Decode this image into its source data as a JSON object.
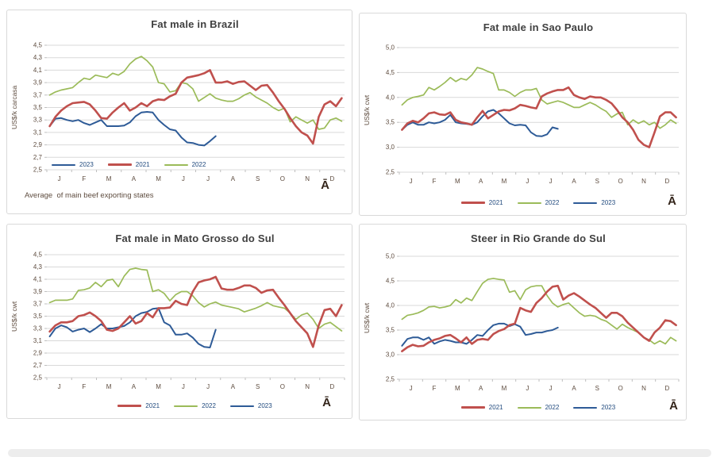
{
  "months": [
    "J",
    "F",
    "M",
    "A",
    "M",
    "J",
    "J",
    "A",
    "S",
    "O",
    "N",
    "D"
  ],
  "colors": {
    "red_2021": "#C0504D",
    "green_2022": "#9BBB59",
    "blue_2023": "#2E5B97",
    "gridline": "#D9D9D9",
    "axis_tick": "#BFBFBF",
    "tick_text": "#5E4C3F",
    "title_text": "#404040",
    "legend_text": "#1F497D",
    "panel_border": "#D9D9D9",
    "bottom_strip": "#EDEDED"
  },
  "chart_data": [
    {
      "type": "line",
      "title": "Fat male in Brazil",
      "ylabel": "US$/k carcasa",
      "ylim": [
        2.5,
        4.5
      ],
      "ystep": 0.2,
      "n_categories": 52,
      "x_tick_labels": [
        "J",
        "F",
        "M",
        "A",
        "M",
        "J",
        "J",
        "A",
        "S",
        "O",
        "N",
        "D"
      ],
      "legend_position": "inside-bottom-left",
      "legend_order": [
        "2023",
        "2021",
        "2022"
      ],
      "footnote": "Average  of main beef exporting states",
      "corner_glyph": "Ā",
      "series": [
        {
          "name": "2023",
          "color": "#2E5B97",
          "stroke_width": 2,
          "values": [
            3.2,
            3.32,
            3.33,
            3.3,
            3.28,
            3.3,
            3.25,
            3.22,
            3.26,
            3.3,
            3.2,
            3.2,
            3.2,
            3.21,
            3.26,
            3.36,
            3.42,
            3.43,
            3.42,
            3.3,
            3.22,
            3.15,
            3.13,
            3.02,
            2.94,
            2.93,
            2.9,
            2.89,
            2.96,
            3.04
          ]
        },
        {
          "name": "2021",
          "color": "#C0504D",
          "stroke_width": 2.6,
          "values": [
            3.2,
            3.35,
            3.45,
            3.52,
            3.57,
            3.58,
            3.59,
            3.55,
            3.45,
            3.33,
            3.32,
            3.42,
            3.5,
            3.57,
            3.45,
            3.5,
            3.57,
            3.52,
            3.6,
            3.63,
            3.62,
            3.68,
            3.72,
            3.9,
            3.98,
            4.0,
            4.02,
            4.05,
            4.1,
            3.9,
            3.9,
            3.92,
            3.88,
            3.91,
            3.92,
            3.85,
            3.78,
            3.85,
            3.86,
            3.74,
            3.6,
            3.48,
            3.33,
            3.2,
            3.1,
            3.05,
            2.92,
            3.35,
            3.55,
            3.6,
            3.52,
            3.65
          ]
        },
        {
          "name": "2022",
          "color": "#9BBB59",
          "stroke_width": 1.7,
          "values": [
            3.7,
            3.75,
            3.78,
            3.8,
            3.82,
            3.9,
            3.97,
            3.95,
            4.02,
            4.0,
            3.98,
            4.05,
            4.02,
            4.08,
            4.2,
            4.28,
            4.32,
            4.25,
            4.15,
            3.9,
            3.88,
            3.75,
            3.77,
            3.9,
            3.88,
            3.8,
            3.6,
            3.66,
            3.72,
            3.65,
            3.62,
            3.6,
            3.6,
            3.64,
            3.7,
            3.74,
            3.67,
            3.62,
            3.57,
            3.5,
            3.45,
            3.49,
            3.27,
            3.35,
            3.3,
            3.25,
            3.3,
            3.15,
            3.17,
            3.3,
            3.33,
            3.28
          ]
        }
      ]
    },
    {
      "type": "line",
      "title": "Fat male in Sao Paulo",
      "ylabel": "US$/k cwt",
      "ylim": [
        2.5,
        5.0
      ],
      "ystep": 0.5,
      "n_categories": 52,
      "x_tick_labels": [
        "J",
        "F",
        "M",
        "A",
        "M",
        "J",
        "J",
        "A",
        "S",
        "O",
        "N",
        "D"
      ],
      "legend_position": "below",
      "legend_order": [
        "2021",
        "2022",
        "2023"
      ],
      "footnote": "",
      "corner_glyph": "Ā",
      "series": [
        {
          "name": "2021",
          "color": "#C0504D",
          "stroke_width": 2.6,
          "values": [
            3.35,
            3.48,
            3.53,
            3.5,
            3.58,
            3.68,
            3.7,
            3.66,
            3.65,
            3.7,
            3.55,
            3.5,
            3.48,
            3.45,
            3.6,
            3.73,
            3.58,
            3.65,
            3.72,
            3.75,
            3.74,
            3.78,
            3.85,
            3.83,
            3.8,
            3.78,
            4.02,
            4.08,
            4.12,
            4.15,
            4.15,
            4.2,
            4.05,
            4.0,
            3.97,
            4.02,
            4.0,
            4.0,
            3.95,
            3.88,
            3.75,
            3.6,
            3.5,
            3.35,
            3.15,
            3.05,
            3.0,
            3.3,
            3.62,
            3.7,
            3.7,
            3.6
          ]
        },
        {
          "name": "2022",
          "color": "#9BBB59",
          "stroke_width": 1.7,
          "values": [
            3.85,
            3.95,
            4.0,
            4.02,
            4.05,
            4.2,
            4.15,
            4.22,
            4.3,
            4.4,
            4.32,
            4.38,
            4.35,
            4.45,
            4.6,
            4.57,
            4.52,
            4.48,
            4.15,
            4.15,
            4.1,
            4.02,
            4.1,
            4.15,
            4.15,
            4.18,
            3.95,
            3.87,
            3.9,
            3.93,
            3.9,
            3.85,
            3.8,
            3.8,
            3.85,
            3.9,
            3.85,
            3.78,
            3.72,
            3.6,
            3.67,
            3.7,
            3.45,
            3.55,
            3.48,
            3.53,
            3.45,
            3.5,
            3.38,
            3.45,
            3.55,
            3.48
          ]
        },
        {
          "name": "2023",
          "color": "#2E5B97",
          "stroke_width": 2,
          "values": [
            3.35,
            3.45,
            3.5,
            3.45,
            3.45,
            3.5,
            3.48,
            3.5,
            3.55,
            3.65,
            3.5,
            3.48,
            3.47,
            3.45,
            3.5,
            3.62,
            3.72,
            3.75,
            3.68,
            3.58,
            3.48,
            3.44,
            3.45,
            3.44,
            3.3,
            3.23,
            3.22,
            3.26,
            3.4,
            3.37
          ]
        }
      ]
    },
    {
      "type": "line",
      "title": "Fat male in Mato Grosso do Sul",
      "ylabel": "US$/k cwt",
      "ylim": [
        2.5,
        4.5
      ],
      "ystep": 0.2,
      "n_categories": 52,
      "x_tick_labels": [
        "J",
        "F",
        "M",
        "A",
        "M",
        "J",
        "J",
        "A",
        "S",
        "O",
        "N",
        "D"
      ],
      "legend_position": "below",
      "legend_order": [
        "2021",
        "2022",
        "2023"
      ],
      "footnote": "",
      "corner_glyph": "Ā",
      "series": [
        {
          "name": "2021",
          "color": "#C0504D",
          "stroke_width": 2.6,
          "values": [
            3.25,
            3.35,
            3.4,
            3.4,
            3.42,
            3.5,
            3.52,
            3.56,
            3.5,
            3.42,
            3.28,
            3.26,
            3.3,
            3.4,
            3.5,
            3.38,
            3.42,
            3.55,
            3.48,
            3.63,
            3.63,
            3.64,
            3.75,
            3.7,
            3.68,
            3.9,
            4.05,
            4.08,
            4.1,
            4.14,
            3.95,
            3.93,
            3.93,
            3.96,
            4.0,
            4.0,
            3.96,
            3.88,
            3.92,
            3.93,
            3.8,
            3.68,
            3.55,
            3.42,
            3.32,
            3.22,
            3.0,
            3.35,
            3.6,
            3.62,
            3.5,
            3.68
          ]
        },
        {
          "name": "2022",
          "color": "#9BBB59",
          "stroke_width": 1.7,
          "values": [
            3.72,
            3.76,
            3.76,
            3.76,
            3.78,
            3.92,
            3.93,
            3.96,
            4.05,
            3.98,
            4.08,
            4.1,
            3.98,
            4.15,
            4.26,
            4.28,
            4.26,
            4.25,
            3.9,
            3.93,
            3.87,
            3.75,
            3.85,
            3.9,
            3.9,
            3.83,
            3.72,
            3.65,
            3.7,
            3.73,
            3.68,
            3.66,
            3.64,
            3.62,
            3.57,
            3.6,
            3.63,
            3.67,
            3.72,
            3.67,
            3.65,
            3.63,
            3.55,
            3.45,
            3.52,
            3.55,
            3.45,
            3.3,
            3.37,
            3.4,
            3.33,
            3.26
          ]
        },
        {
          "name": "2023",
          "color": "#2E5B97",
          "stroke_width": 2,
          "values": [
            3.17,
            3.3,
            3.35,
            3.32,
            3.25,
            3.28,
            3.3,
            3.24,
            3.3,
            3.37,
            3.3,
            3.3,
            3.32,
            3.34,
            3.4,
            3.5,
            3.55,
            3.57,
            3.62,
            3.63,
            3.4,
            3.35,
            3.2,
            3.2,
            3.22,
            3.15,
            3.05,
            3.0,
            2.99,
            3.28
          ]
        }
      ]
    },
    {
      "type": "line",
      "title": "Steer  in Rio Grande do Sul",
      "ylabel": "US$/k cwt",
      "ylim": [
        2.5,
        5.0
      ],
      "ystep": 0.5,
      "n_categories": 52,
      "x_tick_labels": [
        "J",
        "F",
        "M",
        "A",
        "M",
        "J",
        "J",
        "A",
        "S",
        "O",
        "N",
        "D"
      ],
      "legend_position": "below",
      "legend_order": [
        "2021",
        "2022",
        "2023"
      ],
      "footnote": "",
      "corner_glyph": "Ā",
      "series": [
        {
          "name": "2021",
          "color": "#C0504D",
          "stroke_width": 2.6,
          "values": [
            3.07,
            3.15,
            3.2,
            3.17,
            3.18,
            3.25,
            3.3,
            3.33,
            3.38,
            3.4,
            3.33,
            3.25,
            3.35,
            3.22,
            3.3,
            3.32,
            3.3,
            3.42,
            3.48,
            3.52,
            3.6,
            3.63,
            3.95,
            3.9,
            3.87,
            4.05,
            4.15,
            4.28,
            4.38,
            4.4,
            4.12,
            4.2,
            4.25,
            4.18,
            4.1,
            4.02,
            3.95,
            3.85,
            3.75,
            3.85,
            3.85,
            3.78,
            3.65,
            3.55,
            3.45,
            3.35,
            3.28,
            3.45,
            3.55,
            3.7,
            3.68,
            3.6
          ]
        },
        {
          "name": "2022",
          "color": "#9BBB59",
          "stroke_width": 1.7,
          "values": [
            3.72,
            3.8,
            3.82,
            3.85,
            3.9,
            3.97,
            3.98,
            3.95,
            3.97,
            4.0,
            4.12,
            4.05,
            4.15,
            4.1,
            4.28,
            4.45,
            4.53,
            4.55,
            4.53,
            4.52,
            4.27,
            4.3,
            4.12,
            4.32,
            4.38,
            4.4,
            4.4,
            4.2,
            4.05,
            3.97,
            4.02,
            4.05,
            3.95,
            3.85,
            3.78,
            3.8,
            3.78,
            3.72,
            3.68,
            3.6,
            3.52,
            3.62,
            3.55,
            3.5,
            3.45,
            3.35,
            3.3,
            3.22,
            3.28,
            3.22,
            3.35,
            3.28
          ]
        },
        {
          "name": "2023",
          "color": "#2E5B97",
          "stroke_width": 2,
          "values": [
            3.18,
            3.32,
            3.35,
            3.35,
            3.3,
            3.35,
            3.22,
            3.27,
            3.3,
            3.28,
            3.25,
            3.25,
            3.22,
            3.3,
            3.4,
            3.38,
            3.5,
            3.6,
            3.63,
            3.63,
            3.58,
            3.62,
            3.57,
            3.4,
            3.42,
            3.45,
            3.45,
            3.48,
            3.5,
            3.55
          ]
        }
      ]
    }
  ]
}
